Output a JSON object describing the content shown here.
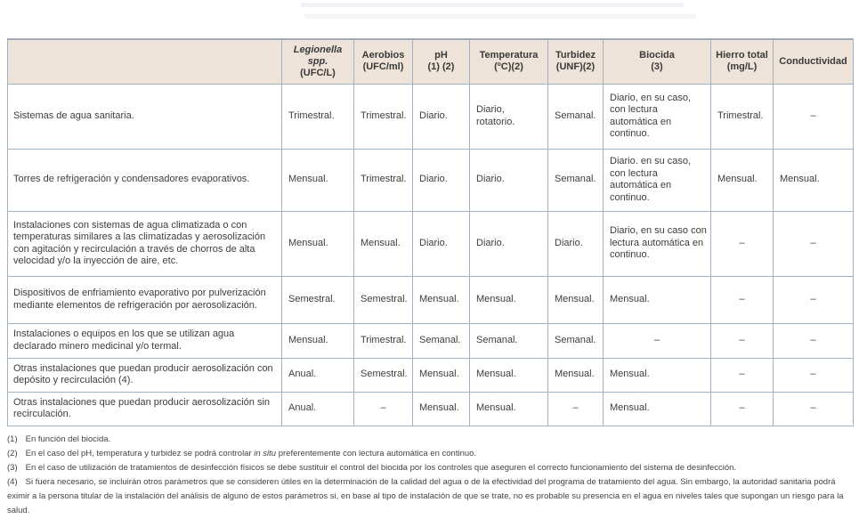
{
  "table": {
    "columns": [
      {
        "key": "installation",
        "title": "",
        "sub": ""
      },
      {
        "key": "legionella",
        "title": "Legionella spp.",
        "sub": "(UFC/L)",
        "italic": true
      },
      {
        "key": "aerobios",
        "title": "Aerobios",
        "sub": "(UFC/ml)"
      },
      {
        "key": "ph",
        "title": "pH",
        "sub": "(1) (2)"
      },
      {
        "key": "temperatura",
        "title": "Temperatura",
        "sub": "(ºC)(2)"
      },
      {
        "key": "turbidez",
        "title": "Turbidez",
        "sub": "(UNF)(2)"
      },
      {
        "key": "biocida",
        "title": "Biocida",
        "sub": "(3)"
      },
      {
        "key": "hierro-total",
        "title": "Hierro total",
        "sub": "(mg/L)"
      },
      {
        "key": "conductividad",
        "title": "Conductividad",
        "sub": ""
      }
    ],
    "rows": [
      {
        "label": "Sistemas de agua sanitaria.",
        "values": [
          "Trimestral.",
          "Trimestral.",
          "Diario.",
          "Diario, rotatorio.",
          "Semanal.",
          "Diario, en su caso, con lectura automática en continuo.",
          "Trimestral.",
          "–"
        ]
      },
      {
        "label": "Torres de refrigeración y condensadores evaporativos.",
        "values": [
          "Mensual.",
          "Trimestral.",
          "Diario.",
          "Diario.",
          "Semanal.",
          "Diario. en su caso, con lectura automática en continuo.",
          "Mensual.",
          "Mensual."
        ]
      },
      {
        "label": "Instalaciones con sistemas de agua climatizada o con temperaturas similares a las climatizadas y aerosolización con agitación y recirculación a través de chorros de alta velocidad y/o la inyección de aire, etc.",
        "values": [
          "Mensual.",
          "Mensual.",
          "Diario.",
          "Diario.",
          "Diario.",
          "Diario, en su caso con lectura automática en continuo.",
          "–",
          "–"
        ]
      },
      {
        "label": "Dispositivos de enfriamiento evaporativo por pulverización mediante elementos de refrigeración por aerosolización.",
        "values": [
          "Semestral.",
          "Semestral.",
          "Mensual.",
          "Mensual.",
          "Mensual.",
          "Mensual.",
          "–",
          "–"
        ]
      },
      {
        "label": "Instalaciones o equipos en los que se utilizan agua declarado minero medicinal y/o termal.",
        "values": [
          "Mensual.",
          "Trimestral.",
          "Semanal.",
          "Semanal.",
          "Semanal.",
          "–",
          "–",
          "–"
        ]
      },
      {
        "label": "Otras instalaciones que puedan producir aerosolización con depósito y recirculación (4).",
        "values": [
          "Anual.",
          "Semestral.",
          "Mensual.",
          "Mensual.",
          "Mensual.",
          "Mensual.",
          "–",
          "–"
        ]
      },
      {
        "label": "Otras instalaciones que puedan producir aerosolización sin recirculación.",
        "values": [
          "Anual.",
          "–",
          "Mensual.",
          "Mensual.",
          "–",
          "Mensual.",
          "–",
          "–"
        ]
      }
    ]
  },
  "footnotes": [
    {
      "num": "(1)",
      "text": "En función del biocida."
    },
    {
      "num": "(2)",
      "pre": "En el caso del pH, temperatura y turbidez se podrá controlar ",
      "it": "in situ",
      "post": " preferentemente con lectura automática en continuo."
    },
    {
      "num": "(3)",
      "text": "En el caso de utilización de tratamientos de desinfección físicos se debe sustituir el control del biocida por los controles que aseguren el correcto funcionamiento del sistema de desinfección."
    },
    {
      "num": "(4)",
      "text": "Si fuera necesario, se incluirán otros parámetros que se consideren útiles en la determinación de la calidad del agua o de la efectividad del programa de tratamiento del agua. Sin embargo, la autoridad sanitaria podrá eximir a la persona titular de la instalación del análisis de alguno de estos parámetros si, en base al tipo de instalación de que se trate, no es probable su presencia en el agua en niveles tales que supongan un riesgo para la salud."
    }
  ],
  "colors": {
    "header_bg": "#ede3d8",
    "border": "#a2b0c3",
    "text": "#3d3d3d"
  }
}
